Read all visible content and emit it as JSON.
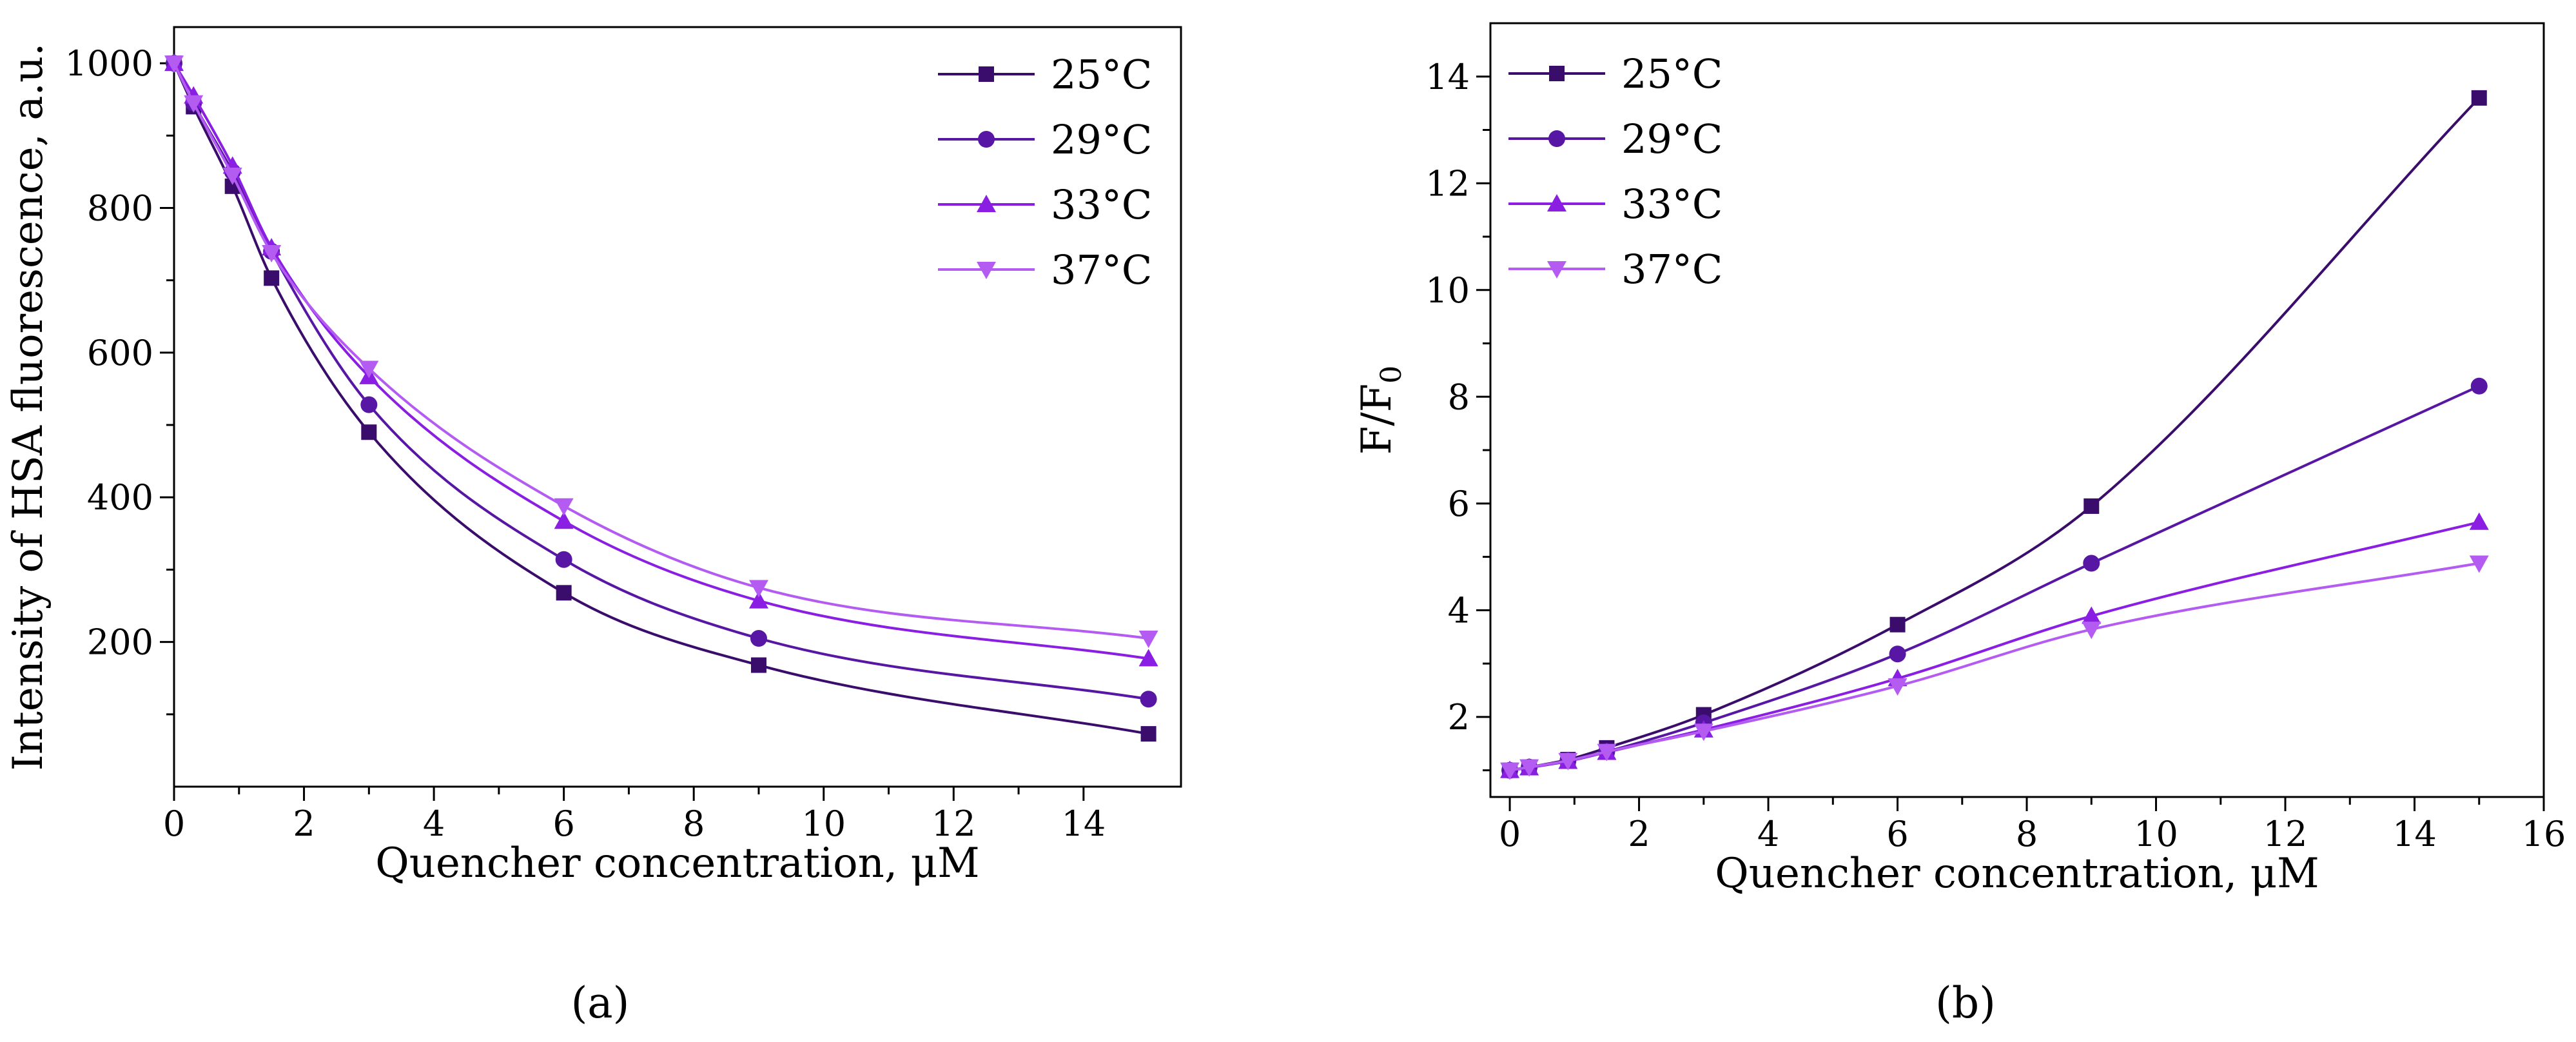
{
  "colors": {
    "s25": "#3a0c6b",
    "s29": "#5716a3",
    "s33": "#8a1ee3",
    "s37": "#b45cf2",
    "axis": "#000000"
  },
  "chart_data": [
    {
      "type": "line",
      "panel_label": "(a)",
      "xlabel": "Quencher concentration, μM",
      "ylabel": "Intensity of HSA fluorescence, a.u.",
      "xlim": [
        0,
        15.5
      ],
      "ylim": [
        0,
        1050
      ],
      "xticks": [
        0,
        2,
        4,
        6,
        8,
        10,
        12,
        14
      ],
      "yticks": [
        200,
        400,
        600,
        800,
        1000
      ],
      "legend_position": "top-right",
      "x": [
        0,
        0.3,
        0.9,
        1.5,
        3,
        6,
        9,
        15
      ],
      "series": [
        {
          "name": "25°C",
          "marker": "square",
          "values": [
            1000,
            940,
            830,
            703,
            490,
            268,
            168,
            73
          ]
        },
        {
          "name": "29°C",
          "marker": "circle",
          "values": [
            1000,
            945,
            850,
            740,
            528,
            314,
            205,
            121
          ]
        },
        {
          "name": "33°C",
          "marker": "triangle-up",
          "values": [
            1000,
            955,
            858,
            745,
            567,
            367,
            257,
            177
          ]
        },
        {
          "name": "37°C",
          "marker": "triangle-down",
          "values": [
            1000,
            945,
            845,
            738,
            578,
            388,
            275,
            205
          ]
        }
      ]
    },
    {
      "type": "line",
      "panel_label": "(b)",
      "xlabel": "Quencher concentration, μM",
      "ylabel_main": "F/F",
      "ylabel_sub": "0",
      "xlim": [
        -0.3,
        16
      ],
      "ylim": [
        0.5,
        15
      ],
      "xticks": [
        0,
        2,
        4,
        6,
        8,
        10,
        12,
        14,
        16
      ],
      "yticks": [
        2,
        4,
        6,
        8,
        10,
        12,
        14
      ],
      "legend_position": "top-left",
      "x": [
        0,
        0.3,
        0.9,
        1.5,
        3,
        6,
        9,
        15
      ],
      "series": [
        {
          "name": "25°C",
          "marker": "square",
          "values": [
            1.0,
            1.06,
            1.2,
            1.42,
            2.04,
            3.73,
            5.95,
            13.6
          ]
        },
        {
          "name": "29°C",
          "marker": "circle",
          "values": [
            1.0,
            1.06,
            1.18,
            1.35,
            1.89,
            3.18,
            4.88,
            8.2
          ]
        },
        {
          "name": "33°C",
          "marker": "triangle-up",
          "values": [
            1.0,
            1.05,
            1.17,
            1.34,
            1.76,
            2.72,
            3.89,
            5.65
          ]
        },
        {
          "name": "37°C",
          "marker": "triangle-down",
          "values": [
            1.0,
            1.06,
            1.18,
            1.35,
            1.73,
            2.58,
            3.64,
            4.88
          ]
        }
      ]
    }
  ]
}
